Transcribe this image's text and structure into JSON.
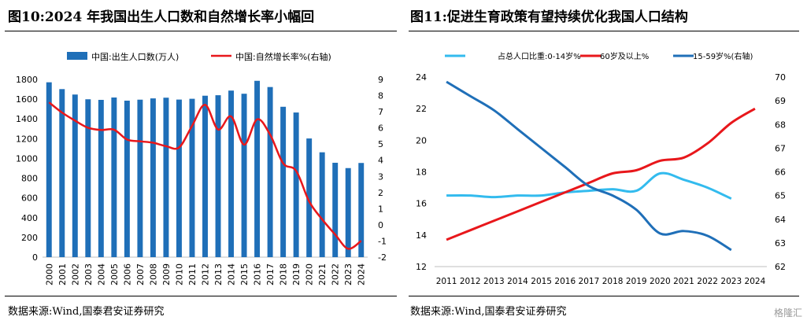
{
  "chart_data": [
    {
      "type": "bar",
      "title": "图10:2024 年我国出生人口数和自然增长率小幅回",
      "source": "数据来源:Wind,国泰君安证券研究",
      "categories": [
        "2000",
        "2001",
        "2002",
        "2003",
        "2004",
        "2005",
        "2006",
        "2007",
        "2008",
        "2009",
        "2010",
        "2011",
        "2012",
        "2013",
        "2014",
        "2015",
        "2016",
        "2017",
        "2018",
        "2019",
        "2020",
        "2021",
        "2022",
        "2023",
        "2024"
      ],
      "series": [
        {
          "name": "中国:出生人口数(万人)",
          "axis": "left",
          "kind": "bar",
          "color": "#1f6fb8",
          "values": [
            1771,
            1702,
            1647,
            1599,
            1593,
            1617,
            1585,
            1595,
            1608,
            1615,
            1596,
            1604,
            1635,
            1640,
            1687,
            1655,
            1786,
            1723,
            1523,
            1465,
            1202,
            1062,
            956,
            902,
            954
          ]
        },
        {
          "name": "中国:自然增长率%(右轴)",
          "axis": "right",
          "kind": "line",
          "color": "#e8171b",
          "values": [
            7.58,
            6.95,
            6.45,
            6.01,
            5.87,
            5.89,
            5.28,
            5.17,
            5.08,
            4.87,
            4.79,
            6.13,
            7.43,
            5.9,
            6.71,
            4.96,
            6.53,
            5.58,
            3.81,
            3.34,
            1.45,
            0.34,
            -0.6,
            -1.48,
            -0.99
          ]
        }
      ],
      "ylim_left": [
        0,
        1800
      ],
      "yticks_left": [
        "0",
        "200",
        "400",
        "600",
        "800",
        "1000",
        "1200",
        "1400",
        "1600",
        "1800"
      ],
      "ylim_right": [
        -2,
        9
      ],
      "yticks_right": [
        "-2",
        "-1",
        "0",
        "1",
        "2",
        "3",
        "4",
        "5",
        "6",
        "7",
        "8",
        "9"
      ],
      "legend_position": "top"
    },
    {
      "type": "line",
      "title": "图11:促进生育政策有望持续优化我国人口结构",
      "source": "数据来源:Wind,国泰君安证券研究",
      "x": [
        "2011",
        "2012",
        "2013",
        "2014",
        "2015",
        "2016",
        "2017",
        "2018",
        "2019",
        "2020",
        "2021",
        "2022",
        "2023",
        "2024"
      ],
      "series": [
        {
          "name": "占总人口比重:0-14岁%",
          "axis": "left",
          "color": "#33bbee",
          "values": [
            16.5,
            16.5,
            16.4,
            16.5,
            16.5,
            16.7,
            16.8,
            16.9,
            16.8,
            17.9,
            17.5,
            17.0,
            16.3,
            null
          ]
        },
        {
          "name": "60岁及以上%",
          "axis": "left",
          "color": "#e8171b",
          "values": [
            13.7,
            14.3,
            14.9,
            15.5,
            16.1,
            16.7,
            17.3,
            17.9,
            18.1,
            18.7,
            18.9,
            19.8,
            21.1,
            22.0
          ]
        },
        {
          "name": "15-59岁%(右轴)",
          "axis": "right",
          "color": "#1f6fb8",
          "values": [
            69.8,
            69.2,
            68.6,
            67.8,
            67.0,
            66.2,
            65.4,
            65.0,
            64.4,
            63.4,
            63.5,
            63.3,
            62.7,
            null
          ]
        }
      ],
      "ylim_left": [
        12,
        24
      ],
      "yticks_left": [
        "12",
        "14",
        "16",
        "18",
        "20",
        "22",
        "24"
      ],
      "ylim_right": [
        62,
        70
      ],
      "yticks_right": [
        "62",
        "63",
        "64",
        "65",
        "66",
        "67",
        "68",
        "69",
        "70"
      ],
      "legend_position": "top"
    }
  ],
  "watermark": "格隆汇"
}
